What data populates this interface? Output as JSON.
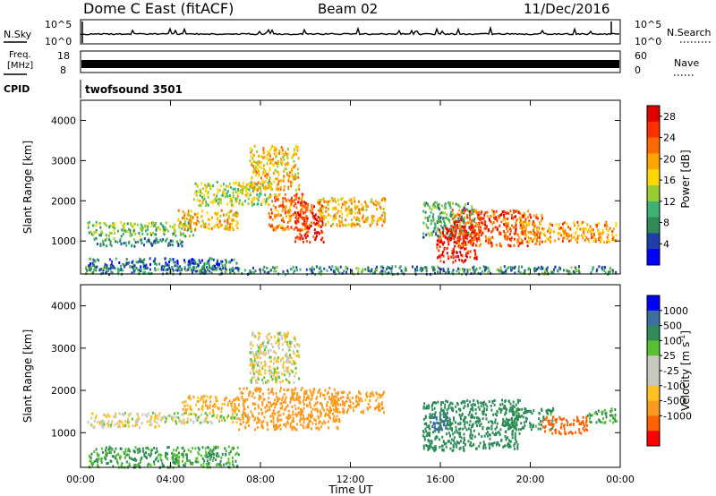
{
  "header": {
    "station": "Dome C East (fitACF)",
    "beam": "Beam 02",
    "date": "11/Dec/2016"
  },
  "strip_panels": {
    "nsky_label": "N.Sky",
    "nsky_ticks": [
      "10^5",
      "10^0"
    ],
    "nsearch_label": "N.Search",
    "nsearch_ticks": [
      "10^5",
      "10^0"
    ],
    "freq_label_1": "Freq.",
    "freq_label_2": "[MHz]",
    "freq_ticks": [
      "18",
      "8"
    ],
    "nave_label": "Nave",
    "nave_ticks": [
      "60",
      "0"
    ],
    "cpid_label": "CPID",
    "cpid_value": "twofsound 3501"
  },
  "colors": {
    "power_scale": [
      "#0000ff",
      "#1f3fa8",
      "#2e8b57",
      "#3cb371",
      "#9acd32",
      "#ffd700",
      "#ffa500",
      "#ff6a00",
      "#ff3000",
      "#e00000"
    ],
    "velocity_scale": [
      "#ff0000",
      "#ff6000",
      "#ff9a20",
      "#ffc020",
      "#c8c8c0",
      "#c8c8c0",
      "#58c030",
      "#2e8b57",
      "#3b6fa0",
      "#0000ff"
    ]
  },
  "chart_data": [
    {
      "type": "heatmap",
      "title": "",
      "xlabel": "",
      "ylabel": "Slant Range [km]",
      "xticks": [
        "00:00",
        "04:00",
        "08:00",
        "12:00",
        "16:00",
        "20:00",
        "00:00"
      ],
      "yticks": [
        "1000",
        "2000",
        "3000",
        "4000"
      ],
      "xlim": [
        0,
        24
      ],
      "ylim": [
        180,
        4500
      ],
      "colorbar": {
        "label": "Power [dB]",
        "ticks": [
          "4",
          "8",
          "12",
          "16",
          "20",
          "24",
          "28"
        ],
        "range": [
          0,
          30
        ]
      },
      "regions": [
        {
          "t0": 0.3,
          "t1": 5.0,
          "r0": 1150,
          "r1": 1500,
          "level": 12
        },
        {
          "t0": 0.5,
          "t1": 4.5,
          "r0": 900,
          "r1": 1100,
          "level": 8
        },
        {
          "t0": 0.3,
          "t1": 7.0,
          "r0": 300,
          "r1": 600,
          "level": 6
        },
        {
          "t0": 4.3,
          "t1": 7.0,
          "r0": 1300,
          "r1": 1800,
          "level": 18
        },
        {
          "t0": 5.0,
          "t1": 8.5,
          "r0": 1900,
          "r1": 2500,
          "level": 14
        },
        {
          "t0": 7.5,
          "t1": 9.7,
          "r0": 2300,
          "r1": 3400,
          "level": 18
        },
        {
          "t0": 8.3,
          "t1": 10.0,
          "r0": 1300,
          "r1": 2200,
          "level": 22
        },
        {
          "t0": 9.5,
          "t1": 10.8,
          "r0": 1000,
          "r1": 2000,
          "level": 26
        },
        {
          "t0": 10.5,
          "t1": 13.5,
          "r0": 1400,
          "r1": 2100,
          "level": 18
        },
        {
          "t0": 15.2,
          "t1": 17.5,
          "r0": 1100,
          "r1": 2000,
          "level": 10
        },
        {
          "t0": 15.8,
          "t1": 17.6,
          "r0": 500,
          "r1": 1400,
          "level": 28
        },
        {
          "t0": 16.5,
          "t1": 20.5,
          "r0": 900,
          "r1": 1800,
          "level": 24
        },
        {
          "t0": 19.5,
          "t1": 23.8,
          "r0": 1000,
          "r1": 1500,
          "level": 20
        },
        {
          "t0": 0.2,
          "t1": 23.8,
          "r0": 200,
          "r1": 400,
          "level": 8
        }
      ]
    },
    {
      "type": "heatmap",
      "title": "",
      "xlabel": "Time UT",
      "ylabel": "Slant Range [km]",
      "xticks": [
        "00:00",
        "04:00",
        "08:00",
        "12:00",
        "16:00",
        "20:00",
        "00:00"
      ],
      "yticks": [
        "1000",
        "2000",
        "3000",
        "4000"
      ],
      "xlim": [
        0,
        24
      ],
      "ylim": [
        180,
        4500
      ],
      "colorbar": {
        "label": "Velocity [m s^-1]",
        "ticks": [
          "1000",
          "500",
          "100",
          "25",
          "-25",
          "-100",
          "-500",
          "-1000"
        ]
      },
      "regions": [
        {
          "t0": 0.3,
          "t1": 3.5,
          "r0": 1150,
          "r1": 1500,
          "level": -25
        },
        {
          "t0": 3.5,
          "t1": 7.5,
          "r0": 1250,
          "r1": 1500,
          "level": 0
        },
        {
          "t0": 0.3,
          "t1": 7.0,
          "r0": 200,
          "r1": 700,
          "level": 100
        },
        {
          "t0": 4.5,
          "t1": 7.0,
          "r0": 1500,
          "r1": 1900,
          "level": -100
        },
        {
          "t0": 7.5,
          "t1": 9.7,
          "r0": 2200,
          "r1": 3400,
          "level": 0
        },
        {
          "t0": 7.0,
          "t1": 11.5,
          "r0": 1100,
          "r1": 2100,
          "level": -300
        },
        {
          "t0": 11.0,
          "t1": 13.5,
          "r0": 1500,
          "r1": 2000,
          "level": -150
        },
        {
          "t0": 15.2,
          "t1": 19.5,
          "r0": 600,
          "r1": 1800,
          "level": 200
        },
        {
          "t0": 15.6,
          "t1": 16.3,
          "r0": 1100,
          "r1": 1500,
          "level": 800
        },
        {
          "t0": 19.0,
          "t1": 21.0,
          "r0": 1100,
          "r1": 1600,
          "level": 150
        },
        {
          "t0": 20.5,
          "t1": 22.5,
          "r0": 1000,
          "r1": 1400,
          "level": -600
        },
        {
          "t0": 22.5,
          "t1": 23.8,
          "r0": 1250,
          "r1": 1600,
          "level": 100
        }
      ]
    }
  ]
}
